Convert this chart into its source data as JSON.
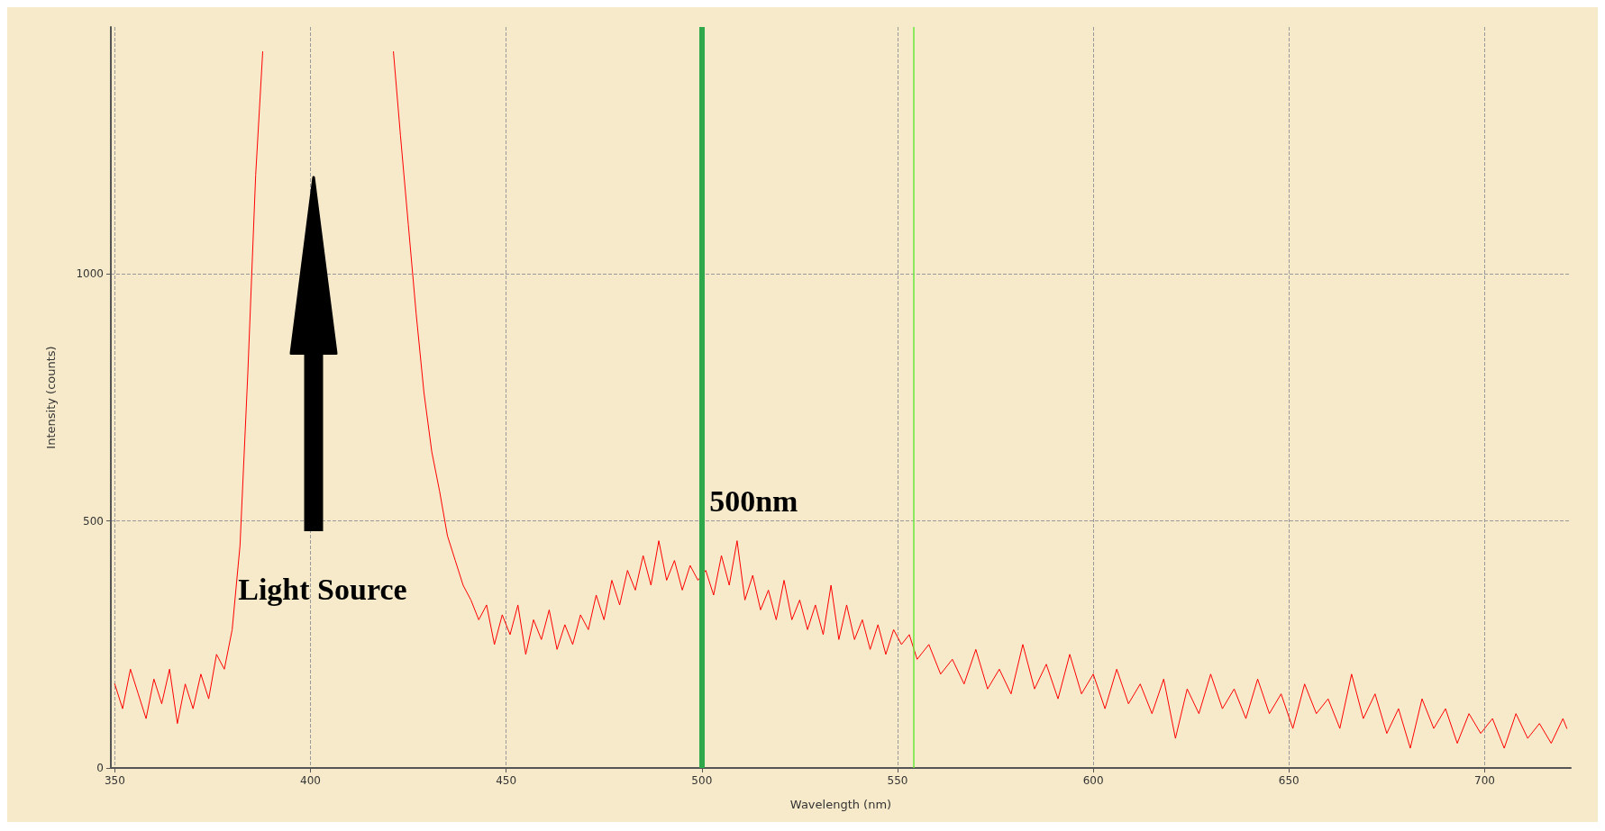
{
  "chart_data": {
    "type": "line",
    "xlabel": "Wavelength (nm)",
    "ylabel": "Intensity (counts)",
    "xlim": [
      349,
      722
    ],
    "ylim": [
      0,
      1500
    ],
    "xticks": [
      350,
      400,
      450,
      500,
      550,
      600,
      650,
      700
    ],
    "yticks": [
      0,
      500,
      1000
    ],
    "grid": true,
    "marker": "none",
    "line_style": "solid",
    "x": [
      350,
      352,
      354,
      356,
      358,
      360,
      362,
      364,
      366,
      368,
      370,
      372,
      374,
      376,
      378,
      380,
      382,
      384,
      386,
      387.8,
      405,
      421.2,
      423,
      425,
      427,
      429,
      431,
      433,
      435,
      437,
      439,
      441,
      443,
      445,
      447,
      449,
      451,
      453,
      455,
      457,
      459,
      461,
      463,
      465,
      467,
      469,
      471,
      473,
      475,
      477,
      479,
      481,
      483,
      485,
      487,
      489,
      491,
      493,
      495,
      497,
      499,
      501,
      503,
      505,
      507,
      509,
      511,
      513,
      515,
      517,
      519,
      521,
      523,
      525,
      527,
      529,
      531,
      533,
      535,
      537,
      539,
      541,
      543,
      545,
      547,
      549,
      551,
      553,
      555,
      558,
      561,
      564,
      567,
      570,
      573,
      576,
      579,
      582,
      585,
      588,
      591,
      594,
      597,
      600,
      603,
      606,
      609,
      612,
      615,
      618,
      621,
      624,
      627,
      630,
      633,
      636,
      639,
      642,
      645,
      648,
      651,
      654,
      657,
      660,
      663,
      666,
      669,
      672,
      675,
      678,
      681,
      684,
      687,
      690,
      693,
      696,
      699,
      702,
      705,
      708,
      711,
      714,
      717,
      720,
      721
    ],
    "series": [
      {
        "color": "#ff0000",
        "values": [
          170,
          120,
          200,
          150,
          100,
          180,
          130,
          200,
          90,
          170,
          120,
          190,
          140,
          230,
          200,
          280,
          450,
          800,
          1200,
          1450,
          null,
          1450,
          1280,
          1100,
          920,
          760,
          640,
          560,
          470,
          420,
          370,
          340,
          300,
          330,
          250,
          310,
          270,
          330,
          230,
          300,
          260,
          320,
          240,
          290,
          250,
          310,
          280,
          350,
          300,
          380,
          330,
          400,
          360,
          430,
          370,
          460,
          380,
          420,
          360,
          410,
          380,
          400,
          350,
          430,
          370,
          460,
          340,
          390,
          320,
          360,
          300,
          380,
          300,
          340,
          280,
          330,
          270,
          370,
          260,
          330,
          260,
          300,
          240,
          290,
          230,
          280,
          250,
          270,
          220,
          250,
          190,
          220,
          170,
          240,
          160,
          200,
          150,
          250,
          160,
          210,
          140,
          230,
          150,
          190,
          120,
          200,
          130,
          170,
          110,
          180,
          60,
          160,
          110,
          190,
          120,
          160,
          100,
          180,
          110,
          150,
          80,
          170,
          110,
          140,
          80,
          190,
          100,
          150,
          70,
          120,
          40,
          140,
          80,
          120,
          50,
          110,
          70,
          100,
          40,
          110,
          60,
          90,
          50,
          100,
          80
        ]
      }
    ],
    "ref_lines": [
      {
        "axis": "x",
        "value": 500,
        "color": "#2ea84a"
      },
      {
        "axis": "x",
        "value": 554,
        "color": "#66e83a"
      }
    ],
    "annotations": [
      "500nm",
      "Light Source"
    ]
  }
}
